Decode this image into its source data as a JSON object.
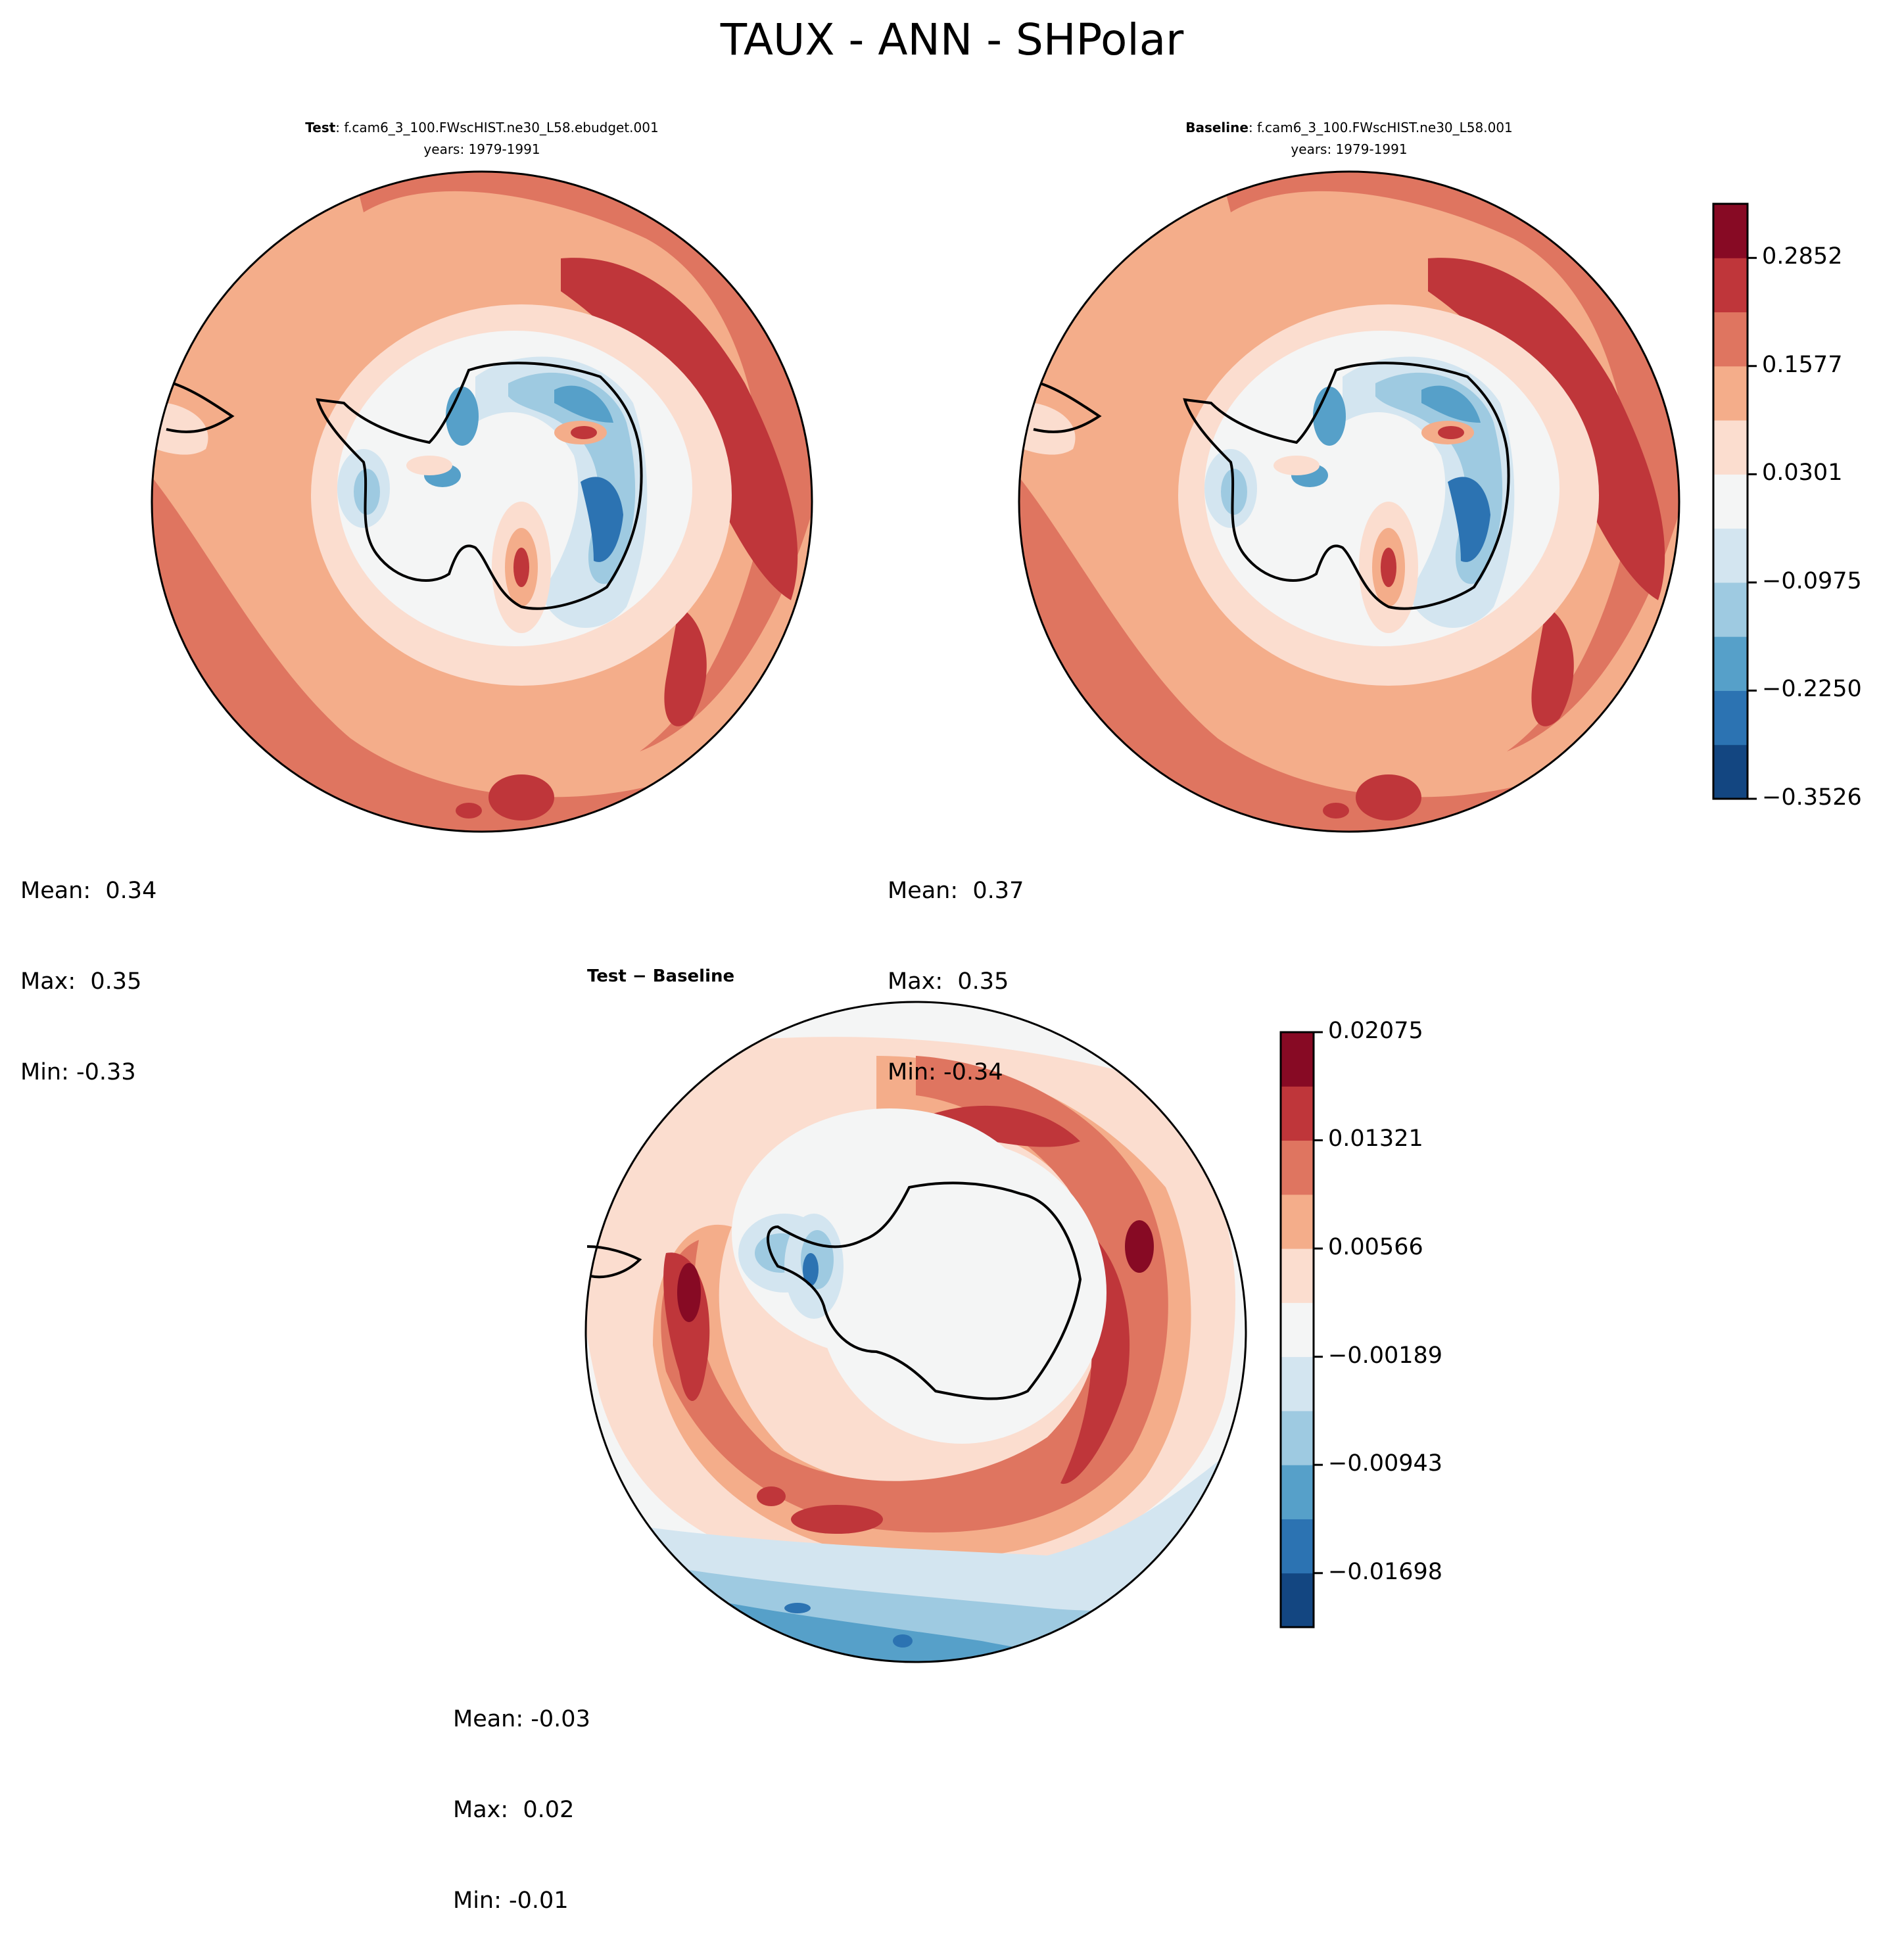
{
  "suptitle": "TAUX - ANN - SHPolar",
  "colors": [
    "#134681",
    "#2c73b2",
    "#56a0c9",
    "#9ecae1",
    "#d3e5f0",
    "#f4f5f5",
    "#fbddcf",
    "#f4ad8a",
    "#df7560",
    "#bf363a",
    "#870a24"
  ],
  "panels": {
    "test": {
      "title_bold": "Test",
      "title_rest": ": f.cam6_3_100.FWscHIST.ne30_L58.ebudget.001",
      "years": "years: 1979-1991",
      "mean": "Mean:  0.34",
      "max": "Max:  0.35",
      "min": "Min: -0.33"
    },
    "baseline": {
      "title_bold": "Baseline",
      "title_rest": ": f.cam6_3_100.FWscHIST.ne30_L58.001",
      "years": "years: 1979-1991",
      "mean": "Mean:  0.37",
      "max": "Max:  0.35",
      "min": "Min: -0.34"
    },
    "diff": {
      "title": "Test − Baseline",
      "mean": "Mean: -0.03",
      "max": "Max:  0.02",
      "min": "Min: -0.01"
    }
  },
  "chart_data": [
    {
      "type": "heatmap",
      "title": "Test: f.cam6_3_100.FWscHIST.ne30_L58.ebudget.001 (years: 1979-1991)",
      "projection": "south-polar-stereographic",
      "variable": "TAUX",
      "stats": {
        "mean": 0.34,
        "max": 0.35,
        "min": -0.33
      }
    },
    {
      "type": "heatmap",
      "title": "Baseline: f.cam6_3_100.FWscHIST.ne30_L58.001 (years: 1979-1991)",
      "projection": "south-polar-stereographic",
      "variable": "TAUX",
      "stats": {
        "mean": 0.37,
        "max": 0.35,
        "min": -0.34
      }
    },
    {
      "type": "heatmap",
      "title": "Test − Baseline",
      "projection": "south-polar-stereographic",
      "variable": "TAUX difference",
      "stats": {
        "mean": -0.03,
        "max": 0.02,
        "min": -0.01
      }
    }
  ],
  "colorbars": {
    "main": {
      "range": [
        -0.3526,
        0.349
      ],
      "bins": 10,
      "ticks": [
        {
          "label": "0.2852",
          "value": 0.2852
        },
        {
          "label": "0.1577",
          "value": 0.1577
        },
        {
          "label": "0.0301",
          "value": 0.0301
        },
        {
          "label": "−0.0975",
          "value": -0.0975
        },
        {
          "label": "−0.2250",
          "value": -0.225
        },
        {
          "label": "−0.3526",
          "value": -0.3526
        }
      ]
    },
    "diff": {
      "range": [
        -0.02075,
        0.02075
      ],
      "bins": 10,
      "ticks": [
        {
          "label": "0.02075",
          "value": 0.02075
        },
        {
          "label": "0.01321",
          "value": 0.01321
        },
        {
          "label": "0.00566",
          "value": 0.00566
        },
        {
          "label": "−0.00189",
          "value": -0.00189
        },
        {
          "label": "−0.00943",
          "value": -0.00943
        },
        {
          "label": "−0.01698",
          "value": -0.01698
        }
      ]
    }
  }
}
